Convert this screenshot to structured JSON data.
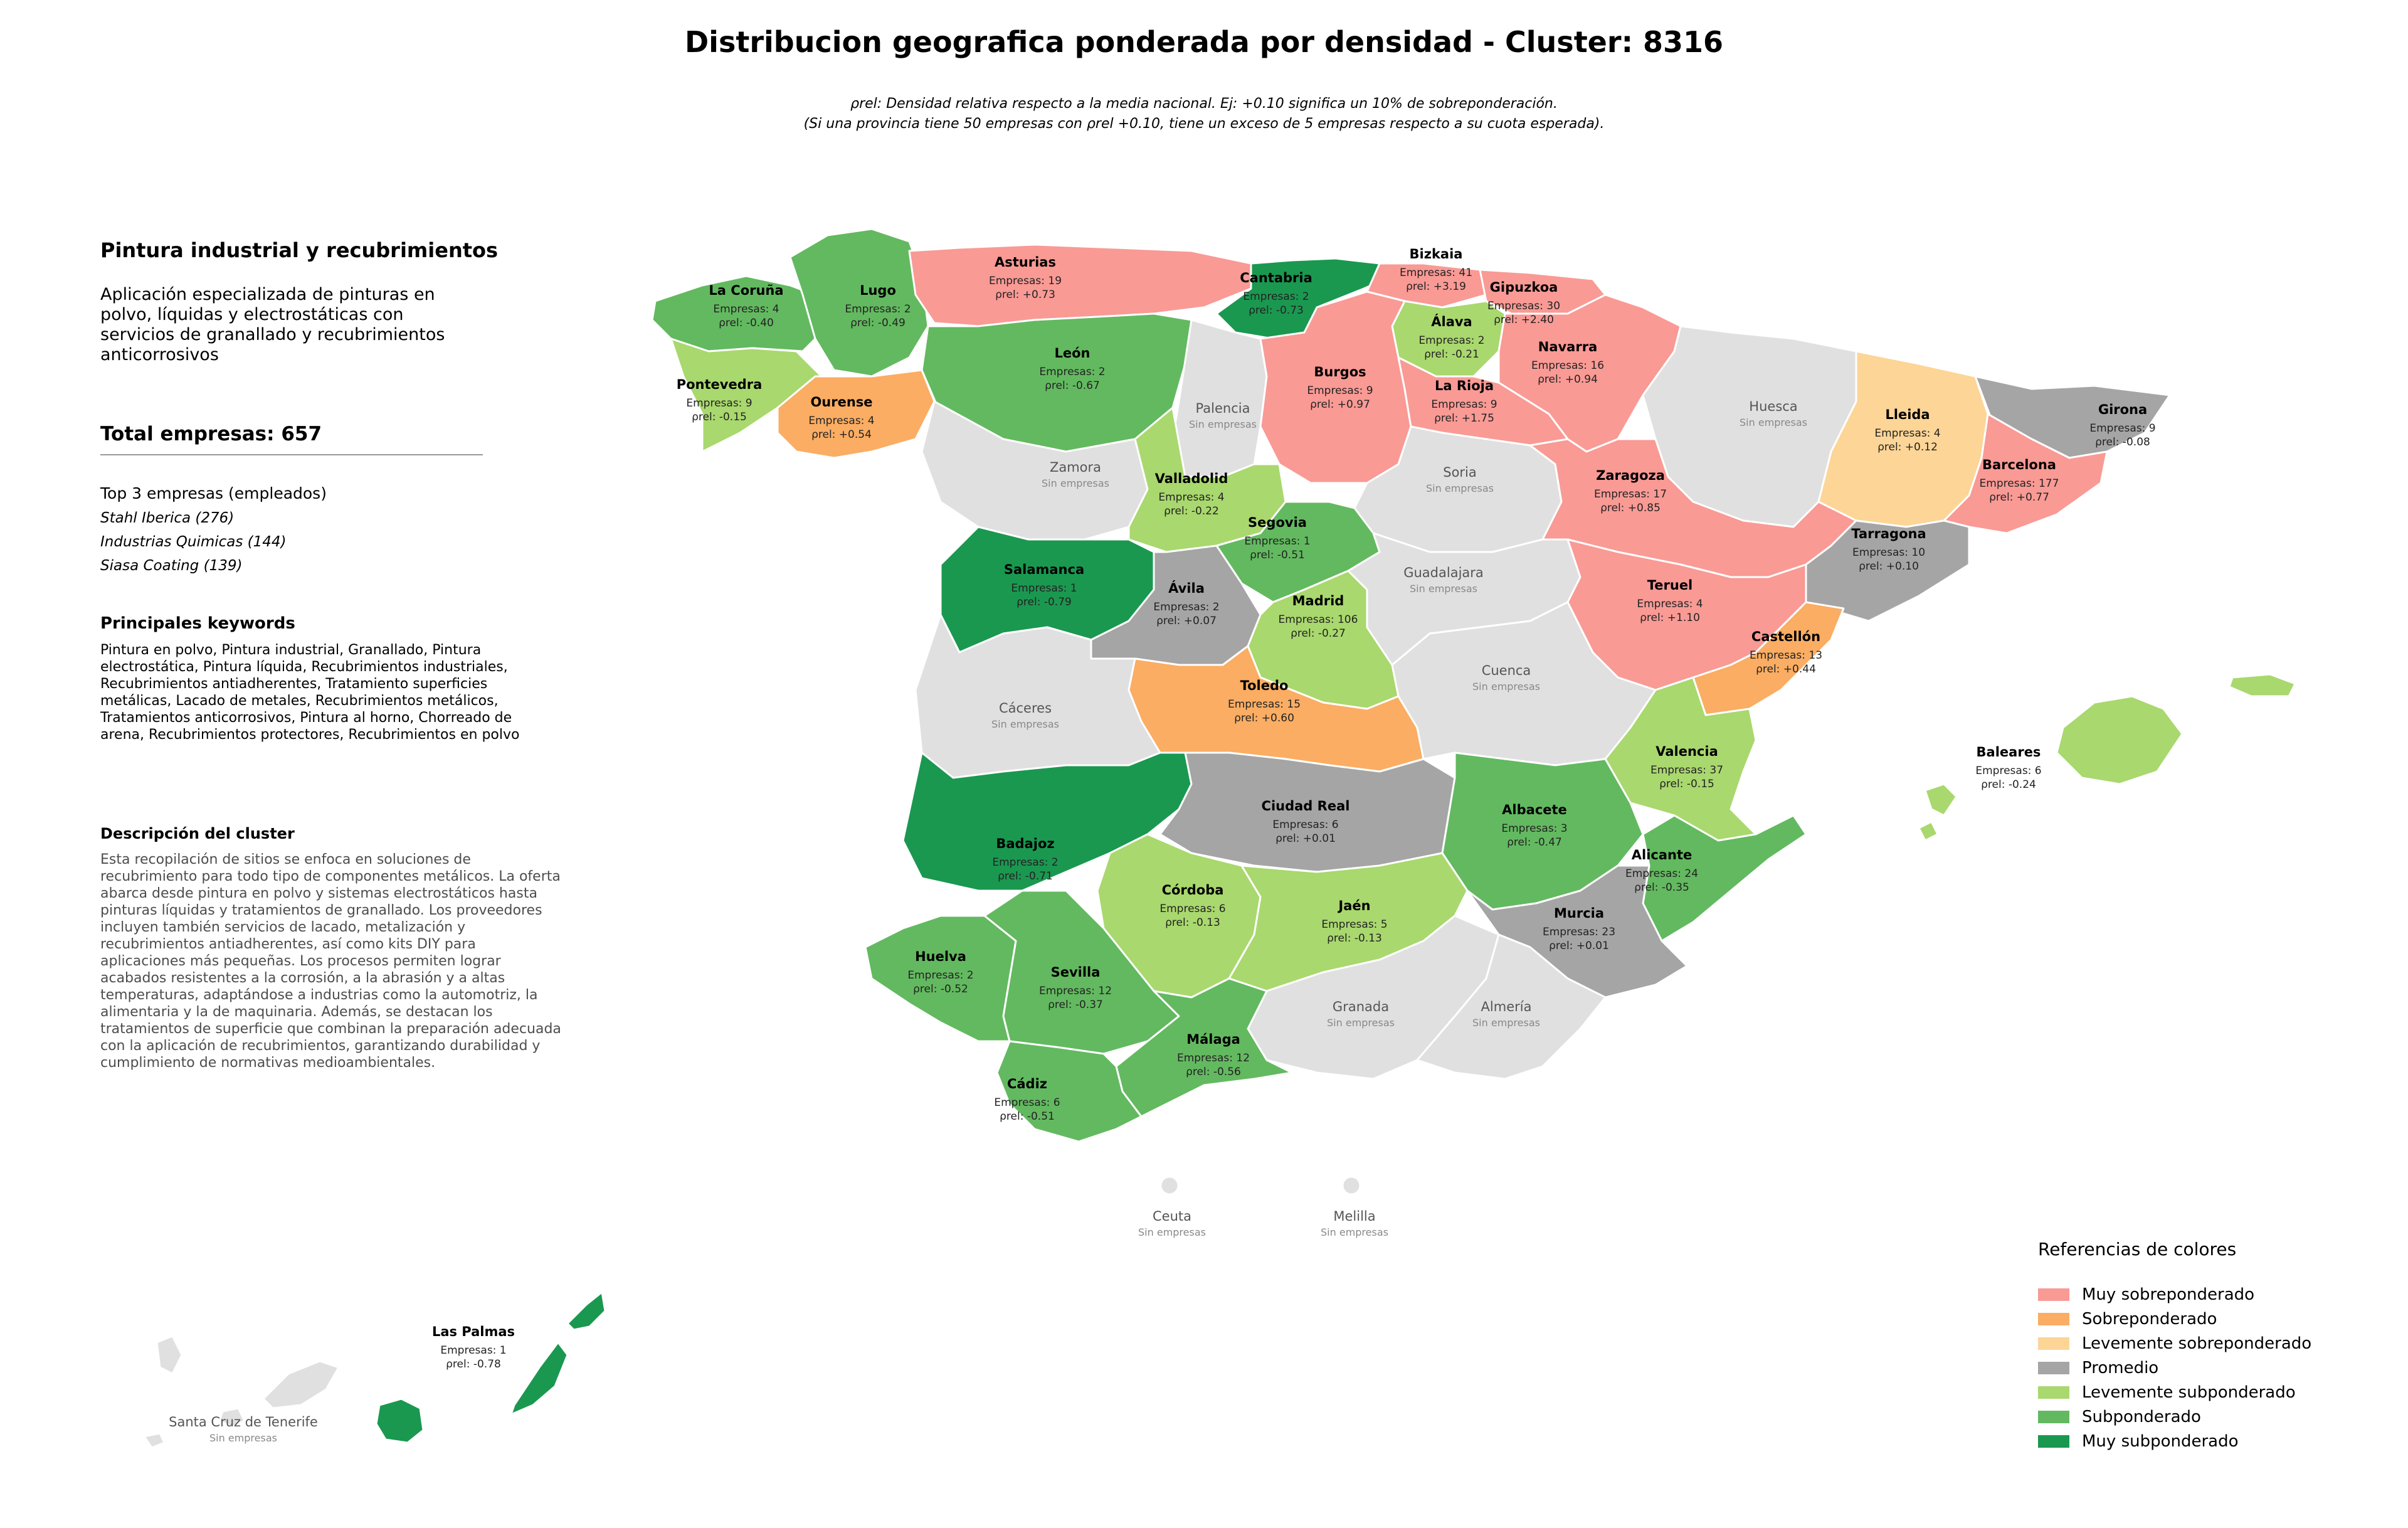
{
  "title": "Distribucion geografica ponderada por densidad - Cluster: 8316",
  "subtitle": {
    "line1": "ρrel: Densidad relativa respecto a la media nacional. Ej: +0.10 significa un 10% de sobreponderación.",
    "line2": "(Si una provincia tiene 50 empresas con ρrel +0.10, tiene un exceso de 5 empresas respecto a su cuota esperada)."
  },
  "panel": {
    "heading": "Pintura industrial y recubrimientos",
    "description": "Aplicación especializada de pinturas en polvo, líquidas y electrostáticas con servicios de granallado y recubrimientos anticorrosivos",
    "total": "Total empresas: 657",
    "top_title": "Top 3 empresas (empleados)",
    "top_companies": [
      "Stahl Iberica (276)",
      "Industrias Quimicas (144)",
      "Siasa Coating (139)"
    ],
    "keywords_title": "Principales keywords",
    "keywords": "Pintura en polvo, Pintura industrial, Granallado, Pintura electrostática, Pintura líquida, Recubrimientos industriales, Recubrimientos antiadherentes, Tratamiento superficies metálicas, Lacado de metales, Recubrimientos metálicos, Tratamientos anticorrosivos, Pintura al horno, Chorreado de arena, Recubrimientos protectores, Recubrimientos en polvo",
    "cluster_title": "Descripción del cluster",
    "cluster_text": "Esta recopilación de sitios se enfoca en soluciones de recubrimiento para todo tipo de componentes metálicos. La oferta abarca desde pintura en polvo y sistemas electrostáticos hasta pinturas líquidas y tratamientos de granallado. Los proveedores incluyen también servicios de lacado, metalización y recubrimientos antiadherentes, así como kits DIY para aplicaciones más pequeñas. Los procesos permiten lograr acabados resistentes a la corrosión, a la abrasión y a altas temperaturas, adaptándose a industrias como la automotriz, la alimentaria y la de maquinaria. Además, se destacan los tratamientos de superficie que combinan la preparación adecuada con la aplicación de recubrimientos, garantizando durabilidad y cumplimiento de normativas medioambientales."
  },
  "colors": {
    "muy_sobre": "#f99a95",
    "sobre": "#faad63",
    "lev_sobre": "#fcd597",
    "promedio": "#a5a5a5",
    "lev_sub": "#a9d86e",
    "sub": "#63b960",
    "muy_sub": "#1a9850",
    "sin": "#e0e0e0"
  },
  "legend": {
    "title": "Referencias de colores",
    "items": [
      {
        "label": "Muy sobreponderado",
        "cat": "muy_sobre"
      },
      {
        "label": "Sobreponderado",
        "cat": "sobre"
      },
      {
        "label": "Levemente sobreponderado",
        "cat": "lev_sobre"
      },
      {
        "label": "Promedio",
        "cat": "promedio"
      },
      {
        "label": "Levemente subponderado",
        "cat": "lev_sub"
      },
      {
        "label": "Subponderado",
        "cat": "sub"
      },
      {
        "label": "Muy subponderado",
        "cat": "muy_sub"
      }
    ]
  },
  "labels": {
    "empresas": "Empresas: ",
    "rho": "ρrel: ",
    "sin": "Sin empresas"
  },
  "provinces": [
    {
      "id": "coruna",
      "name": "La Coruña",
      "empresas": 4,
      "rho": "-0.40",
      "cat": "sub"
    },
    {
      "id": "lugo",
      "name": "Lugo",
      "empresas": 2,
      "rho": "-0.49",
      "cat": "sub"
    },
    {
      "id": "asturias",
      "name": "Asturias",
      "empresas": 19,
      "rho": "+0.73",
      "cat": "muy_sobre"
    },
    {
      "id": "cantabria",
      "name": "Cantabria",
      "empresas": 2,
      "rho": "-0.73",
      "cat": "muy_sub"
    },
    {
      "id": "bizkaia",
      "name": "Bizkaia",
      "empresas": 41,
      "rho": "+3.19",
      "cat": "muy_sobre"
    },
    {
      "id": "gipuzkoa",
      "name": "Gipuzkoa",
      "empresas": 30,
      "rho": "+2.40",
      "cat": "muy_sobre"
    },
    {
      "id": "alava",
      "name": "Álava",
      "empresas": 2,
      "rho": "-0.21",
      "cat": "lev_sub"
    },
    {
      "id": "navarra",
      "name": "Navarra",
      "empresas": 16,
      "rho": "+0.94",
      "cat": "muy_sobre"
    },
    {
      "id": "pontevedra",
      "name": "Pontevedra",
      "empresas": 9,
      "rho": "-0.15",
      "cat": "lev_sub"
    },
    {
      "id": "ourense",
      "name": "Ourense",
      "empresas": 4,
      "rho": "+0.54",
      "cat": "sobre"
    },
    {
      "id": "leon",
      "name": "León",
      "empresas": 2,
      "rho": "-0.67",
      "cat": "sub"
    },
    {
      "id": "palencia",
      "name": "Palencia",
      "empresas": null,
      "rho": null,
      "cat": "sin"
    },
    {
      "id": "burgos",
      "name": "Burgos",
      "empresas": 9,
      "rho": "+0.97",
      "cat": "muy_sobre"
    },
    {
      "id": "larioja",
      "name": "La Rioja",
      "empresas": 9,
      "rho": "+1.75",
      "cat": "muy_sobre"
    },
    {
      "id": "huesca",
      "name": "Huesca",
      "empresas": null,
      "rho": null,
      "cat": "sin"
    },
    {
      "id": "lleida",
      "name": "Lleida",
      "empresas": 4,
      "rho": "+0.12",
      "cat": "lev_sobre"
    },
    {
      "id": "girona",
      "name": "Girona",
      "empresas": 9,
      "rho": "-0.08",
      "cat": "promedio"
    },
    {
      "id": "barcelona",
      "name": "Barcelona",
      "empresas": 177,
      "rho": "+0.77",
      "cat": "muy_sobre"
    },
    {
      "id": "zamora",
      "name": "Zamora",
      "empresas": null,
      "rho": null,
      "cat": "sin"
    },
    {
      "id": "valladolid",
      "name": "Valladolid",
      "empresas": 4,
      "rho": "-0.22",
      "cat": "lev_sub"
    },
    {
      "id": "soria",
      "name": "Soria",
      "empresas": null,
      "rho": null,
      "cat": "sin"
    },
    {
      "id": "zaragoza",
      "name": "Zaragoza",
      "empresas": 17,
      "rho": "+0.85",
      "cat": "muy_sobre"
    },
    {
      "id": "tarragona",
      "name": "Tarragona",
      "empresas": 10,
      "rho": "+0.10",
      "cat": "promedio"
    },
    {
      "id": "salamanca",
      "name": "Salamanca",
      "empresas": 1,
      "rho": "-0.79",
      "cat": "muy_sub"
    },
    {
      "id": "segovia",
      "name": "Segovia",
      "empresas": 1,
      "rho": "-0.51",
      "cat": "sub"
    },
    {
      "id": "avila",
      "name": "Ávila",
      "empresas": 2,
      "rho": "+0.07",
      "cat": "promedio"
    },
    {
      "id": "madrid",
      "name": "Madrid",
      "empresas": 106,
      "rho": "-0.27",
      "cat": "lev_sub"
    },
    {
      "id": "guadalajara",
      "name": "Guadalajara",
      "empresas": null,
      "rho": null,
      "cat": "sin"
    },
    {
      "id": "teruel",
      "name": "Teruel",
      "empresas": 4,
      "rho": "+1.10",
      "cat": "muy_sobre"
    },
    {
      "id": "castellon",
      "name": "Castellón",
      "empresas": 13,
      "rho": "+0.44",
      "cat": "sobre"
    },
    {
      "id": "caceres",
      "name": "Cáceres",
      "empresas": null,
      "rho": null,
      "cat": "sin"
    },
    {
      "id": "toledo",
      "name": "Toledo",
      "empresas": 15,
      "rho": "+0.60",
      "cat": "sobre"
    },
    {
      "id": "cuenca",
      "name": "Cuenca",
      "empresas": null,
      "rho": null,
      "cat": "sin"
    },
    {
      "id": "valencia",
      "name": "Valencia",
      "empresas": 37,
      "rho": "-0.15",
      "cat": "lev_sub"
    },
    {
      "id": "baleares",
      "name": "Baleares",
      "empresas": 6,
      "rho": "-0.24",
      "cat": "lev_sub"
    },
    {
      "id": "badajoz",
      "name": "Badajoz",
      "empresas": 2,
      "rho": "-0.71",
      "cat": "muy_sub"
    },
    {
      "id": "ciudadreal",
      "name": "Ciudad Real",
      "empresas": 6,
      "rho": "+0.01",
      "cat": "promedio"
    },
    {
      "id": "albacete",
      "name": "Albacete",
      "empresas": 3,
      "rho": "-0.47",
      "cat": "sub"
    },
    {
      "id": "alicante",
      "name": "Alicante",
      "empresas": 24,
      "rho": "-0.35",
      "cat": "sub"
    },
    {
      "id": "cordoba",
      "name": "Córdoba",
      "empresas": 6,
      "rho": "-0.13",
      "cat": "lev_sub"
    },
    {
      "id": "jaen",
      "name": "Jaén",
      "empresas": 5,
      "rho": "-0.13",
      "cat": "lev_sub"
    },
    {
      "id": "murcia",
      "name": "Murcia",
      "empresas": 23,
      "rho": "+0.01",
      "cat": "promedio"
    },
    {
      "id": "huelva",
      "name": "Huelva",
      "empresas": 2,
      "rho": "-0.52",
      "cat": "sub"
    },
    {
      "id": "sevilla",
      "name": "Sevilla",
      "empresas": 12,
      "rho": "-0.37",
      "cat": "sub"
    },
    {
      "id": "granada",
      "name": "Granada",
      "empresas": null,
      "rho": null,
      "cat": "sin"
    },
    {
      "id": "almeria",
      "name": "Almería",
      "empresas": null,
      "rho": null,
      "cat": "sin"
    },
    {
      "id": "malaga",
      "name": "Málaga",
      "empresas": 12,
      "rho": "-0.56",
      "cat": "sub"
    },
    {
      "id": "cadiz",
      "name": "Cádiz",
      "empresas": 6,
      "rho": "-0.51",
      "cat": "sub"
    },
    {
      "id": "ceuta",
      "name": "Ceuta",
      "empresas": null,
      "rho": null,
      "cat": "sin"
    },
    {
      "id": "melilla",
      "name": "Melilla",
      "empresas": null,
      "rho": null,
      "cat": "sin"
    },
    {
      "id": "laspalmas",
      "name": "Las Palmas",
      "empresas": 1,
      "rho": "-0.78",
      "cat": "muy_sub"
    },
    {
      "id": "tenerife",
      "name": "Santa Cruz de Tenerife",
      "empresas": null,
      "rho": null,
      "cat": "sin"
    }
  ]
}
